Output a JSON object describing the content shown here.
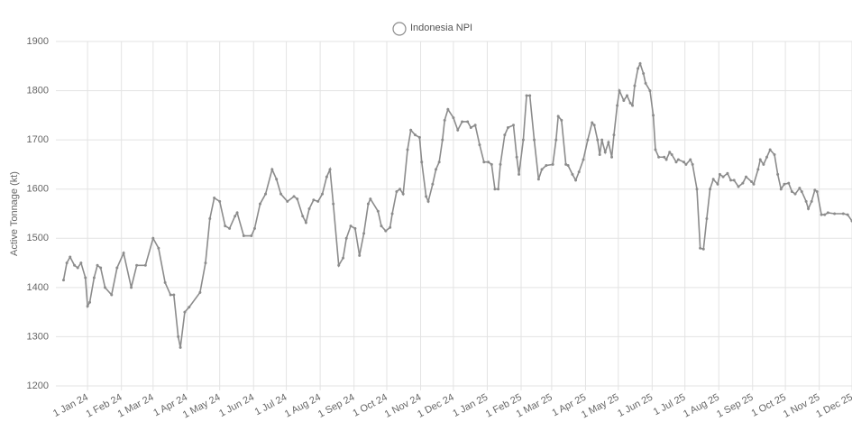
{
  "chart_data": {
    "type": "line",
    "y_label": "Active Tonnage (kt)",
    "legend": "top",
    "grid": true,
    "ylim": [
      1200,
      1900
    ],
    "yticks": [
      1200,
      1300,
      1400,
      1500,
      1600,
      1700,
      1800,
      1900
    ],
    "xlim": [
      "2023-12-03",
      "2025-12-01"
    ],
    "xticks": [
      {
        "value": "2024-01-01",
        "label": "1 Jan 24"
      },
      {
        "value": "2024-02-01",
        "label": "1 Feb 24"
      },
      {
        "value": "2024-03-01",
        "label": "1 Mar 24"
      },
      {
        "value": "2024-04-01",
        "label": "1 Apr 24"
      },
      {
        "value": "2024-05-01",
        "label": "1 May 24"
      },
      {
        "value": "2024-06-01",
        "label": "1 Jun 24"
      },
      {
        "value": "2024-07-01",
        "label": "1 Jul 24"
      },
      {
        "value": "2024-08-01",
        "label": "1 Aug 24"
      },
      {
        "value": "2024-09-01",
        "label": "1 Sep 24"
      },
      {
        "value": "2024-10-01",
        "label": "1 Oct 24"
      },
      {
        "value": "2024-11-01",
        "label": "1 Nov 24"
      },
      {
        "value": "2024-12-01",
        "label": "1 Dec 24"
      },
      {
        "value": "2025-01-01",
        "label": "1 Jan 25"
      },
      {
        "value": "2025-02-01",
        "label": "1 Feb 25"
      },
      {
        "value": "2025-03-01",
        "label": "1 Mar 25"
      },
      {
        "value": "2025-04-01",
        "label": "1 Apr 25"
      },
      {
        "value": "2025-05-01",
        "label": "1 May 25"
      },
      {
        "value": "2025-06-01",
        "label": "1 Jun 25"
      },
      {
        "value": "2025-07-01",
        "label": "1 Jul 25"
      },
      {
        "value": "2025-08-01",
        "label": "1 Aug 25"
      },
      {
        "value": "2025-09-01",
        "label": "1 Sep 25"
      },
      {
        "value": "2025-10-01",
        "label": "1 Oct 25"
      },
      {
        "value": "2025-11-01",
        "label": "1 Nov 25"
      },
      {
        "value": "2025-12-01",
        "label": "1 Dec 25"
      }
    ],
    "x": [
      "2023-12-10",
      "2023-12-13",
      "2023-12-16",
      "2023-12-20",
      "2023-12-23",
      "2023-12-26",
      "2023-12-30",
      "2024-01-01",
      "2024-01-03",
      "2024-01-07",
      "2024-01-10",
      "2024-01-13",
      "2024-01-17",
      "2024-01-23",
      "2024-01-28",
      "2024-02-03",
      "2024-02-10",
      "2024-02-15",
      "2024-02-23",
      "2024-03-01",
      "2024-03-06",
      "2024-03-12",
      "2024-03-17",
      "2024-03-20",
      "2024-03-24",
      "2024-03-26",
      "2024-03-30",
      "2024-04-03",
      "2024-04-13",
      "2024-04-18",
      "2024-04-22",
      "2024-04-26",
      "2024-05-01",
      "2024-05-06",
      "2024-05-10",
      "2024-05-15",
      "2024-05-17",
      "2024-05-23",
      "2024-05-30",
      "2024-06-02",
      "2024-06-07",
      "2024-06-12",
      "2024-06-18",
      "2024-06-22",
      "2024-06-26",
      "2024-07-02",
      "2024-07-08",
      "2024-07-11",
      "2024-07-16",
      "2024-07-19",
      "2024-07-22",
      "2024-07-26",
      "2024-07-30",
      "2024-08-03",
      "2024-08-07",
      "2024-08-10",
      "2024-08-13",
      "2024-08-18",
      "2024-08-22",
      "2024-08-25",
      "2024-08-29",
      "2024-09-02",
      "2024-09-06",
      "2024-09-10",
      "2024-09-14",
      "2024-09-16",
      "2024-09-23",
      "2024-09-26",
      "2024-09-30",
      "2024-10-04",
      "2024-10-06",
      "2024-10-10",
      "2024-10-13",
      "2024-10-16",
      "2024-10-20",
      "2024-10-23",
      "2024-10-27",
      "2024-10-31",
      "2024-11-02",
      "2024-11-06",
      "2024-11-08",
      "2024-11-12",
      "2024-11-15",
      "2024-11-18",
      "2024-11-21",
      "2024-11-23",
      "2024-11-26",
      "2024-12-01",
      "2024-12-05",
      "2024-12-09",
      "2024-12-14",
      "2024-12-17",
      "2024-12-21",
      "2024-12-25",
      "2024-12-29",
      "2025-01-02",
      "2025-01-05",
      "2025-01-08",
      "2025-01-11",
      "2025-01-13",
      "2025-01-17",
      "2025-01-20",
      "2025-01-25",
      "2025-01-28",
      "2025-01-30",
      "2025-02-03",
      "2025-02-06",
      "2025-02-09",
      "2025-02-13",
      "2025-02-17",
      "2025-02-20",
      "2025-02-24",
      "2025-03-02",
      "2025-03-05",
      "2025-03-07",
      "2025-03-10",
      "2025-03-14",
      "2025-03-16",
      "2025-03-20",
      "2025-03-23",
      "2025-03-26",
      "2025-03-30",
      "2025-04-03",
      "2025-04-07",
      "2025-04-09",
      "2025-04-12",
      "2025-04-14",
      "2025-04-16",
      "2025-04-19",
      "2025-04-22",
      "2025-04-25",
      "2025-04-27",
      "2025-04-30",
      "2025-05-02",
      "2025-05-06",
      "2025-05-09",
      "2025-05-12",
      "2025-05-14",
      "2025-05-16",
      "2025-05-19",
      "2025-05-21",
      "2025-05-24",
      "2025-05-26",
      "2025-05-30",
      "2025-06-02",
      "2025-06-04",
      "2025-06-07",
      "2025-06-12",
      "2025-06-14",
      "2025-06-17",
      "2025-06-19",
      "2025-06-23",
      "2025-06-25",
      "2025-06-30",
      "2025-07-02",
      "2025-07-06",
      "2025-07-08",
      "2025-07-12",
      "2025-07-15",
      "2025-07-18",
      "2025-07-21",
      "2025-07-24",
      "2025-07-27",
      "2025-07-31",
      "2025-08-02",
      "2025-08-05",
      "2025-08-09",
      "2025-08-12",
      "2025-08-15",
      "2025-08-19",
      "2025-08-23",
      "2025-08-26",
      "2025-08-31",
      "2025-09-02",
      "2025-09-06",
      "2025-09-08",
      "2025-09-11",
      "2025-09-14",
      "2025-09-17",
      "2025-09-21",
      "2025-09-24",
      "2025-09-27",
      "2025-09-30",
      "2025-10-04",
      "2025-10-07",
      "2025-10-10",
      "2025-10-14",
      "2025-10-16",
      "2025-10-20",
      "2025-10-22",
      "2025-10-25",
      "2025-10-28",
      "2025-10-30",
      "2025-11-03",
      "2025-11-06",
      "2025-11-09",
      "2025-11-15",
      "2025-11-23",
      "2025-11-27",
      "2025-12-01"
    ],
    "series": [
      {
        "name": "Indonesia NPI",
        "color": "#8c8c8c",
        "values": [
          1415,
          1450,
          1462,
          1445,
          1440,
          1450,
          1420,
          1362,
          1370,
          1420,
          1445,
          1440,
          1400,
          1385,
          1440,
          1470,
          1400,
          1445,
          1445,
          1500,
          1480,
          1410,
          1385,
          1385,
          1300,
          1278,
          1350,
          1360,
          1390,
          1450,
          1540,
          1582,
          1575,
          1525,
          1520,
          1545,
          1552,
          1505,
          1505,
          1520,
          1570,
          1590,
          1640,
          1620,
          1590,
          1575,
          1585,
          1580,
          1545,
          1532,
          1560,
          1578,
          1575,
          1590,
          1625,
          1640,
          1570,
          1445,
          1460,
          1500,
          1525,
          1520,
          1465,
          1510,
          1570,
          1580,
          1555,
          1525,
          1515,
          1522,
          1550,
          1595,
          1600,
          1590,
          1680,
          1720,
          1710,
          1705,
          1655,
          1585,
          1575,
          1610,
          1640,
          1655,
          1700,
          1740,
          1762,
          1745,
          1720,
          1737,
          1737,
          1725,
          1730,
          1690,
          1655,
          1655,
          1650,
          1600,
          1600,
          1650,
          1710,
          1725,
          1730,
          1665,
          1630,
          1700,
          1790,
          1790,
          1700,
          1620,
          1640,
          1648,
          1650,
          1700,
          1748,
          1740,
          1650,
          1648,
          1630,
          1618,
          1635,
          1660,
          1700,
          1735,
          1730,
          1700,
          1670,
          1700,
          1675,
          1695,
          1665,
          1710,
          1770,
          1800,
          1780,
          1790,
          1775,
          1770,
          1810,
          1845,
          1855,
          1835,
          1815,
          1800,
          1750,
          1680,
          1665,
          1665,
          1660,
          1675,
          1670,
          1655,
          1660,
          1655,
          1650,
          1660,
          1650,
          1600,
          1480,
          1478,
          1540,
          1600,
          1620,
          1610,
          1630,
          1625,
          1632,
          1618,
          1618,
          1605,
          1612,
          1625,
          1615,
          1610,
          1640,
          1660,
          1650,
          1665,
          1680,
          1670,
          1630,
          1600,
          1610,
          1612,
          1595,
          1590,
          1602,
          1595,
          1575,
          1560,
          1575,
          1598,
          1595,
          1548,
          1548,
          1552,
          1550,
          1550,
          1548,
          1535
        ]
      }
    ]
  }
}
